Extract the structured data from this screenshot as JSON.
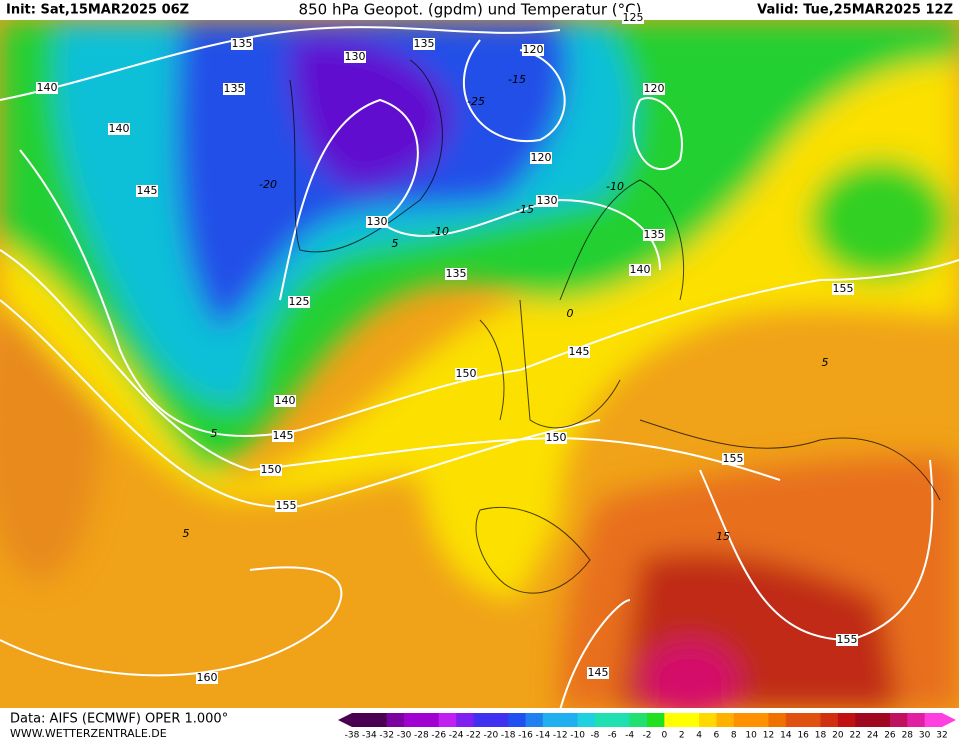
{
  "header": {
    "init": "Init: Sat,15MAR2025 06Z",
    "title": "850 hPa Geopot. (gpdm) und Temperatur (°C)",
    "valid": "Valid: Tue,25MAR2025 12Z"
  },
  "geopotential_labels": [
    135,
    135,
    130,
    120,
    140,
    135,
    120,
    140,
    120,
    145,
    130,
    130,
    135,
    135,
    140,
    125,
    155,
    145,
    150,
    140,
    145,
    150,
    155,
    150,
    155,
    155,
    145,
    160,
    125
  ],
  "temperature_labels": [
    -20,
    -15,
    -15,
    -10,
    -10,
    5,
    0,
    5,
    5,
    5,
    15,
    -25
  ],
  "footer": {
    "source": "Data: AIFS (ECMWF) OPER 1.000°",
    "site": "WWW.WETTERZENTRALE.DE"
  },
  "colorbar": {
    "ticks": [
      -38,
      -34,
      -32,
      -30,
      -28,
      -26,
      -24,
      -22,
      -20,
      -18,
      -16,
      -14,
      -12,
      -10,
      -8,
      -6,
      -4,
      -2,
      0,
      2,
      4,
      6,
      8,
      10,
      12,
      14,
      16,
      18,
      20,
      22,
      24,
      26,
      28,
      30,
      32
    ]
  }
}
